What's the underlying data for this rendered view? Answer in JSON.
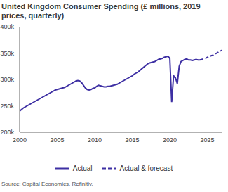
{
  "chart_data": {
    "type": "line",
    "title": "United Kingdom Consumer Spending (£ millions, 2019 prices, quarterly)",
    "source": "Source: Capital Economics, Refinitiv.",
    "xlim": [
      2000,
      2027
    ],
    "xticks": [
      2000,
      2005,
      2010,
      2015,
      2020,
      2025
    ],
    "ylim": [
      200000,
      400000
    ],
    "yticks": [
      {
        "value": 200000,
        "label": "200k"
      },
      {
        "value": 250000,
        "label": "250k"
      },
      {
        "value": 300000,
        "label": "300k"
      },
      {
        "value": 350000,
        "label": "350k"
      },
      {
        "value": 400000,
        "label": "400k"
      }
    ],
    "grid": false,
    "legend": "bottom",
    "series": [
      {
        "name": "Actual",
        "color": "#3d2fa3",
        "line_style": "solid",
        "x": [
          2000,
          2000.25,
          2000.5,
          2000.75,
          2001,
          2001.25,
          2001.5,
          2001.75,
          2002,
          2002.25,
          2002.5,
          2002.75,
          2003,
          2003.25,
          2003.5,
          2003.75,
          2004,
          2004.25,
          2004.5,
          2004.75,
          2005,
          2005.25,
          2005.5,
          2005.75,
          2006,
          2006.25,
          2006.5,
          2006.75,
          2007,
          2007.25,
          2007.5,
          2007.75,
          2008,
          2008.25,
          2008.5,
          2008.75,
          2009,
          2009.25,
          2009.5,
          2009.75,
          2010,
          2010.25,
          2010.5,
          2010.75,
          2011,
          2011.25,
          2011.5,
          2011.75,
          2012,
          2012.25,
          2012.5,
          2012.75,
          2013,
          2013.25,
          2013.5,
          2013.75,
          2014,
          2014.25,
          2014.5,
          2014.75,
          2015,
          2015.25,
          2015.5,
          2015.75,
          2016,
          2016.25,
          2016.5,
          2016.75,
          2017,
          2017.25,
          2017.5,
          2017.75,
          2018,
          2018.25,
          2018.5,
          2018.75,
          2019,
          2019.25,
          2019.5,
          2019.75,
          2020,
          2020.25,
          2020.5,
          2020.75,
          2021,
          2021.25,
          2021.5,
          2021.75,
          2022,
          2022.25,
          2022.5,
          2022.75,
          2023,
          2023.25,
          2023.5,
          2023.75,
          2024
        ],
        "values": [
          240000,
          243000,
          246000,
          248000,
          250000,
          252000,
          254000,
          256000,
          258000,
          260000,
          262000,
          264000,
          266000,
          268000,
          270000,
          272000,
          274000,
          276000,
          278000,
          280000,
          281000,
          282000,
          283000,
          284000,
          285000,
          287000,
          289000,
          291000,
          293000,
          295000,
          297000,
          298000,
          297000,
          294000,
          289000,
          284000,
          281000,
          280000,
          281000,
          283000,
          284000,
          287000,
          289000,
          288000,
          287000,
          286000,
          286000,
          287000,
          287000,
          288000,
          289000,
          290000,
          291000,
          293000,
          295000,
          297000,
          299000,
          301000,
          303000,
          305000,
          307000,
          310000,
          312000,
          314000,
          317000,
          320000,
          323000,
          326000,
          329000,
          331000,
          332000,
          333000,
          334000,
          336000,
          338000,
          339000,
          340000,
          342000,
          343000,
          344000,
          340000,
          257000,
          307000,
          303000,
          292000,
          325000,
          334000,
          336000,
          338000,
          339000,
          337000,
          337000,
          336000,
          337000,
          338000,
          337000,
          337000
        ]
      },
      {
        "name": "Actual & forecast",
        "color": "#3d2fa3",
        "line_style": "dashed",
        "x": [
          2024,
          2024.25,
          2024.5,
          2024.75,
          2025,
          2025.25,
          2025.5,
          2025.75,
          2026,
          2026.25,
          2026.5,
          2026.75,
          2027
        ],
        "values": [
          337000,
          338000,
          339000,
          340000,
          342000,
          343000,
          345000,
          346000,
          348000,
          350000,
          352000,
          354000,
          356000
        ]
      }
    ]
  }
}
